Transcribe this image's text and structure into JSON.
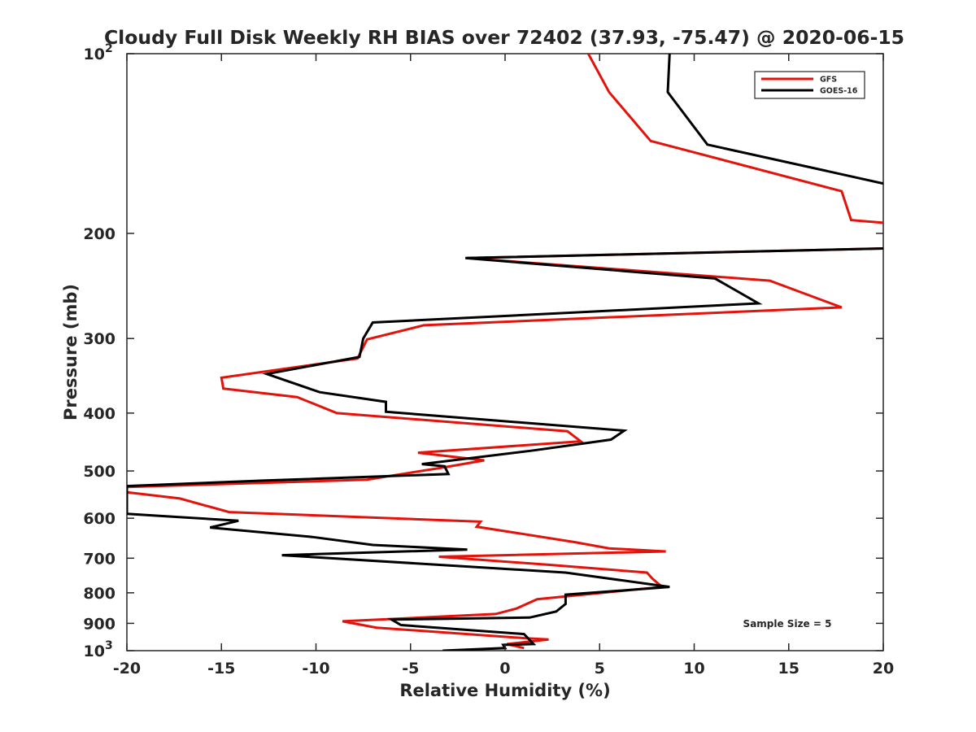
{
  "chart_data": {
    "type": "line",
    "title": "Cloudy Full Disk Weekly RH BIAS over 72402 (37.93, -75.47) @ 2020-06-15",
    "xlabel": "Relative Humidity (%)",
    "ylabel": "Pressure (mb)",
    "xlim": [
      -20,
      20
    ],
    "ylim": [
      100,
      1000
    ],
    "y_scale": "log",
    "y_reversed": true,
    "grid": false,
    "legend_position": "top-right",
    "x_ticks": [
      "-20",
      "-15",
      "-10",
      "-5",
      "0",
      "5",
      "10",
      "15",
      "20"
    ],
    "y_ticks": [
      {
        "value": 100,
        "label": "10",
        "sup": "2"
      },
      {
        "value": 200,
        "label": "200",
        "sup": ""
      },
      {
        "value": 300,
        "label": "300",
        "sup": ""
      },
      {
        "value": 400,
        "label": "400",
        "sup": ""
      },
      {
        "value": 500,
        "label": "500",
        "sup": ""
      },
      {
        "value": 600,
        "label": "600",
        "sup": ""
      },
      {
        "value": 700,
        "label": "700",
        "sup": ""
      },
      {
        "value": 800,
        "label": "800",
        "sup": ""
      },
      {
        "value": 900,
        "label": "900",
        "sup": ""
      },
      {
        "value": 1000,
        "label": "10",
        "sup": "3"
      }
    ],
    "annotation": "Sample Size = 5",
    "series": [
      {
        "name": "GFS",
        "color": "#e3120b",
        "points": [
          [
            4.4,
            100
          ],
          [
            5.5,
            116
          ],
          [
            7.7,
            140
          ],
          [
            17.8,
            170
          ],
          [
            18.3,
            190
          ],
          [
            20.0,
            192
          ]
        ],
        "points_b": [
          [
            20.0,
            212
          ],
          [
            -2.0,
            220
          ],
          [
            14.0,
            240
          ],
          [
            17.8,
            266
          ],
          [
            -4.3,
            285
          ],
          [
            -7.3,
            301
          ],
          [
            -7.8,
            324
          ],
          [
            -15.0,
            349
          ],
          [
            -14.9,
            364
          ],
          [
            -11.0,
            376
          ],
          [
            -8.9,
            400
          ],
          [
            3.3,
            429
          ],
          [
            4.0,
            446
          ],
          [
            -4.6,
            466
          ],
          [
            -1.1,
            480
          ],
          [
            -3.2,
            493
          ],
          [
            -7.3,
            517
          ],
          [
            -20.0,
            532
          ],
          [
            -20.0,
            543
          ],
          [
            -17.2,
            556
          ],
          [
            -14.6,
            586
          ],
          [
            -1.3,
            608
          ],
          [
            -1.5,
            620
          ],
          [
            3.7,
            658
          ],
          [
            5.5,
            674
          ],
          [
            8.5,
            682
          ],
          [
            -3.5,
            696
          ],
          [
            2.3,
            718
          ],
          [
            7.5,
            740
          ],
          [
            7.8,
            758
          ],
          [
            8.3,
            782
          ],
          [
            1.7,
            820
          ],
          [
            0.6,
            850
          ],
          [
            -0.5,
            868
          ],
          [
            -8.6,
            893
          ],
          [
            -6.8,
            915
          ],
          [
            1.1,
            953
          ],
          [
            2.3,
            958
          ],
          [
            0.1,
            975
          ],
          [
            1.0,
            990
          ]
        ]
      },
      {
        "name": "GOES-16",
        "color": "#000000",
        "points": [
          [
            8.7,
            100
          ],
          [
            8.6,
            116
          ],
          [
            10.7,
            142
          ],
          [
            20.0,
            165
          ]
        ],
        "points_b": [
          [
            20.0,
            212
          ],
          [
            -2.1,
            220
          ],
          [
            11.1,
            238
          ],
          [
            13.4,
            262
          ],
          [
            -7.0,
            282
          ],
          [
            -7.5,
            300
          ],
          [
            -7.7,
            322
          ],
          [
            -12.6,
            344
          ],
          [
            -9.8,
            369
          ],
          [
            -6.3,
            383
          ],
          [
            -6.3,
            398
          ],
          [
            6.3,
            428
          ],
          [
            5.6,
            443
          ],
          [
            1.5,
            462
          ],
          [
            -4.4,
            487
          ],
          [
            -3.2,
            491
          ],
          [
            -3.0,
            506
          ],
          [
            -12.8,
            519
          ],
          [
            -20.0,
            530
          ],
          [
            -20.0,
            590
          ],
          [
            -14.1,
            606
          ],
          [
            -15.6,
            622
          ],
          [
            -10.2,
            645
          ],
          [
            -7.0,
            665
          ],
          [
            -2.0,
            677
          ],
          [
            -11.8,
            692
          ],
          [
            3.2,
            740
          ],
          [
            8.7,
            782
          ],
          [
            3.2,
            806
          ],
          [
            3.2,
            835
          ],
          [
            2.7,
            860
          ],
          [
            1.3,
            880
          ],
          [
            -6.0,
            887
          ],
          [
            -5.5,
            906
          ],
          [
            1.0,
            938
          ],
          [
            1.5,
            975
          ],
          [
            -0.1,
            978
          ],
          [
            0.0,
            990
          ],
          [
            -3.3,
            1000
          ]
        ]
      }
    ]
  }
}
